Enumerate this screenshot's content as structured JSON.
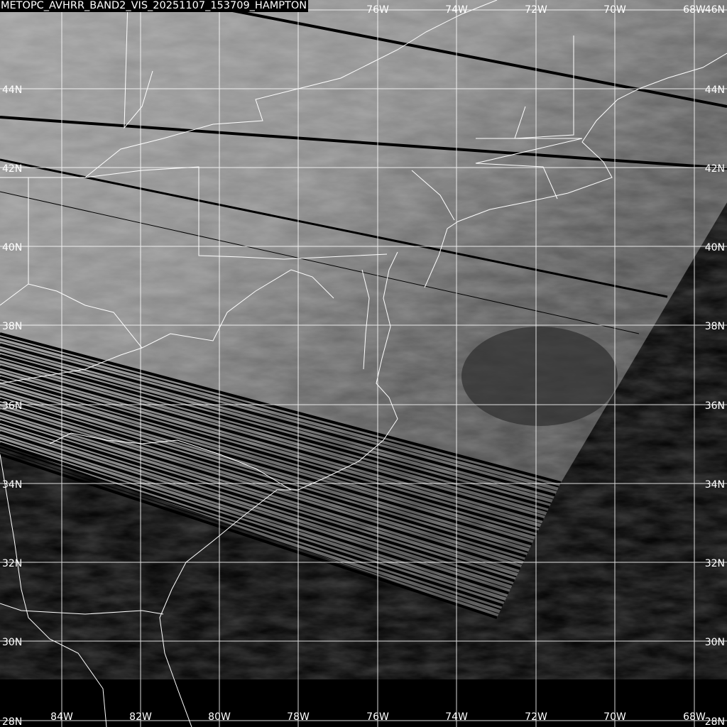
{
  "title": "METOPC_AVHRR_BAND2_VIS_20251107_153709_HAMPTON",
  "map": {
    "product": "AVHRR Band 2 Visible",
    "colors": {
      "background": "#000000",
      "grid": "#ffffff",
      "coastline": "#ffffff",
      "land_gray": "#6e6e6e",
      "cloud_gray": "#b4b4b4",
      "ocean_gray": "#3c3c3c"
    },
    "latitudes": [
      "46N",
      "44N",
      "42N",
      "40N",
      "38N",
      "36N",
      "34N",
      "32N",
      "30N",
      "28N"
    ],
    "longitudes": [
      "84W",
      "82W",
      "80W",
      "78W",
      "76W",
      "74W",
      "72W",
      "70W",
      "68W"
    ],
    "top_longitudes": [
      "76W",
      "74W",
      "72W",
      "70W",
      "68W"
    ],
    "top_right_latitude": "46N",
    "bottom_left_latitude": "28N",
    "bottom_right_latitude": "28N"
  }
}
